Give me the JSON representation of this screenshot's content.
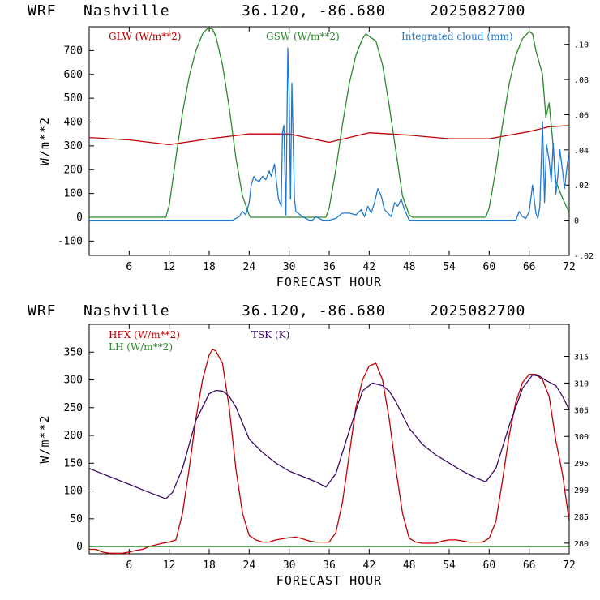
{
  "header": {
    "model": "WRF",
    "location": "Nashville",
    "coords": "36.120, -86.680",
    "date": "2025082700"
  },
  "colors": {
    "glw": "#c00000",
    "gsw": "#2a8a2a",
    "cloud": "#1f78d0",
    "hfx": "#c00000",
    "lh": "#2a8a2a",
    "tsk": "#3c0a64"
  },
  "chart_data": [
    {
      "type": "line",
      "xlabel": "FORECAST HOUR",
      "ylabel": "W/m**2",
      "xlim": [
        0,
        72
      ],
      "ylim": [
        -160,
        800
      ],
      "y2lim": [
        -0.02,
        0.11
      ],
      "x_ticks": [
        6,
        12,
        18,
        24,
        30,
        36,
        42,
        48,
        54,
        60,
        66,
        72
      ],
      "y_ticks": [
        -100,
        0,
        100,
        200,
        300,
        400,
        500,
        600,
        700
      ],
      "y2_ticks": [
        {
          "value": -0.02,
          "label": "-.02"
        },
        {
          "value": 0,
          "label": "0"
        },
        {
          "value": 0.02,
          "label": ".02"
        },
        {
          "value": 0.04,
          "label": ".04"
        },
        {
          "value": 0.06,
          "label": ".06"
        },
        {
          "value": 0.08,
          "label": ".08"
        },
        {
          "value": 0.1,
          "label": ".10"
        }
      ],
      "legend": [
        "GLW (W/m**2)",
        "GSW (W/m**2)",
        "Integrated cloud (mm)"
      ],
      "series": [
        {
          "name": "GLW (W/m**2)",
          "axis": "left",
          "color_key": "glw",
          "x": [
            0,
            6,
            12,
            18,
            24,
            30,
            36,
            42,
            48,
            54,
            60,
            66,
            69,
            72
          ],
          "y": [
            335,
            325,
            305,
            330,
            350,
            350,
            315,
            355,
            345,
            330,
            330,
            360,
            380,
            385
          ]
        },
        {
          "name": "GSW (W/m**2)",
          "axis": "left",
          "color_key": "gsw",
          "x": [
            0,
            11.5,
            12,
            13,
            14,
            15,
            16,
            17,
            17.8,
            18.5,
            19,
            20,
            21,
            22,
            23,
            24,
            24.2,
            35.5,
            36,
            37,
            38,
            39,
            40,
            41,
            41.5,
            42,
            43,
            44,
            45,
            46,
            47,
            48,
            48.5,
            59.5,
            60,
            61,
            62,
            63,
            64,
            65,
            66,
            66.5,
            67,
            67.5,
            68,
            68.5,
            69,
            69.5,
            70,
            71,
            72
          ],
          "y": [
            0,
            0,
            50,
            250,
            440,
            590,
            700,
            770,
            795,
            790,
            760,
            640,
            460,
            250,
            90,
            10,
            0,
            0,
            40,
            200,
            390,
            560,
            680,
            750,
            770,
            760,
            740,
            640,
            470,
            280,
            90,
            10,
            0,
            0,
            40,
            200,
            390,
            560,
            680,
            750,
            780,
            770,
            700,
            650,
            600,
            420,
            480,
            330,
            150,
            80,
            20
          ]
        },
        {
          "name": "Integrated cloud (mm)",
          "axis": "right",
          "color_key": "cloud",
          "x": [
            0,
            17,
            20,
            21.5,
            22.5,
            23,
            23.5,
            24,
            24.3,
            24.7,
            25,
            25.5,
            26,
            26.5,
            27,
            27.3,
            27.8,
            28,
            28.4,
            28.8,
            29,
            29.2,
            29.5,
            29.8,
            30,
            30.2,
            30.4,
            30.6,
            30.8,
            31,
            32,
            33,
            33.5,
            34,
            34.5,
            35,
            36,
            37,
            38,
            39,
            40,
            40.8,
            41.3,
            41.8,
            42.3,
            42.8,
            43.3,
            43.8,
            44.3,
            44.8,
            45.3,
            45.8,
            46.3,
            46.8,
            47.3,
            48,
            49,
            63,
            64,
            64.5,
            65,
            65.5,
            66,
            66.5,
            67,
            67.3,
            67.6,
            68,
            68.3,
            68.6,
            69,
            69.3,
            69.6,
            70,
            70.3,
            70.6,
            71,
            71.3,
            71.6,
            72
          ],
          "y": [
            0.0,
            0.0,
            0.0,
            0.0,
            0.002,
            0.005,
            0.003,
            0.01,
            0.02,
            0.025,
            0.023,
            0.022,
            0.025,
            0.023,
            0.028,
            0.025,
            0.032,
            0.025,
            0.012,
            0.008,
            0.05,
            0.054,
            0.003,
            0.098,
            0.07,
            0.012,
            0.078,
            0.045,
            0.012,
            0.005,
            0.002,
            0.0,
            0.0,
            0.002,
            0.001,
            0.0,
            0.0,
            0.001,
            0.004,
            0.004,
            0.003,
            0.006,
            0.002,
            0.008,
            0.004,
            0.01,
            0.018,
            0.014,
            0.006,
            0.004,
            0.002,
            0.01,
            0.008,
            0.012,
            0.006,
            0.0,
            0.0,
            0.0,
            0.0,
            0.005,
            0.002,
            0.001,
            0.005,
            0.02,
            0.004,
            0.001,
            0.008,
            0.056,
            0.01,
            0.043,
            0.034,
            0.022,
            0.044,
            0.015,
            0.025,
            0.04,
            0.028,
            0.018,
            0.028,
            0.04
          ]
        }
      ]
    },
    {
      "type": "line",
      "xlabel": "FORECAST HOUR",
      "ylabel": "W/m**2",
      "xlim": [
        0,
        72
      ],
      "ylim": [
        -13,
        400
      ],
      "y2lim": [
        278,
        321
      ],
      "x_ticks": [
        6,
        12,
        18,
        24,
        30,
        36,
        42,
        48,
        54,
        60,
        66,
        72
      ],
      "y_ticks": [
        0,
        50,
        100,
        150,
        200,
        250,
        300,
        350
      ],
      "y2_ticks": [
        {
          "value": 280,
          "label": "280"
        },
        {
          "value": 285,
          "label": "285"
        },
        {
          "value": 290,
          "label": "290"
        },
        {
          "value": 295,
          "label": "295"
        },
        {
          "value": 300,
          "label": "300"
        },
        {
          "value": 305,
          "label": "305"
        },
        {
          "value": 310,
          "label": "310"
        },
        {
          "value": 315,
          "label": "315"
        }
      ],
      "legend": [
        "HFX (W/m**2)",
        "LH (W/m**2)",
        "TSK (K)"
      ],
      "series": [
        {
          "name": "HFX (W/m**2)",
          "axis": "left",
          "color_key": "hfx",
          "x": [
            0,
            1,
            2,
            3,
            4,
            5,
            6,
            7,
            8,
            9,
            10,
            11,
            12,
            13,
            14,
            15,
            16,
            17,
            18,
            18.5,
            19,
            20,
            21,
            22,
            23,
            24,
            25,
            26,
            27,
            28,
            29,
            30,
            31,
            32,
            33,
            34,
            35,
            36,
            37,
            38,
            39,
            40,
            41,
            42,
            43,
            44,
            45,
            46,
            47,
            48,
            49,
            50,
            51,
            52,
            53,
            54,
            55,
            56,
            57,
            58,
            59,
            60,
            61,
            62,
            63,
            64,
            65,
            66,
            67,
            68,
            69,
            70,
            71,
            72
          ],
          "y": [
            -5,
            -5,
            -10,
            -12,
            -12,
            -12,
            -10,
            -7,
            -5,
            0,
            3,
            6,
            8,
            12,
            60,
            140,
            230,
            300,
            345,
            355,
            352,
            330,
            250,
            140,
            60,
            20,
            12,
            8,
            8,
            12,
            14,
            16,
            17,
            14,
            10,
            8,
            8,
            8,
            25,
            80,
            165,
            250,
            300,
            325,
            330,
            300,
            230,
            140,
            60,
            15,
            8,
            6,
            6,
            6,
            10,
            12,
            12,
            10,
            8,
            8,
            8,
            15,
            45,
            120,
            200,
            260,
            295,
            310,
            310,
            300,
            270,
            190,
            130,
            45
          ]
        },
        {
          "name": "LH (W/m**2)",
          "axis": "left",
          "color_key": "lh",
          "x": [
            0,
            72
          ],
          "y": [
            0,
            0
          ]
        },
        {
          "name": "TSK (K)",
          "axis": "right",
          "color_key": "tsk",
          "x": [
            0,
            3,
            6,
            9,
            11.5,
            12.5,
            14,
            16,
            18,
            19,
            20,
            21,
            22,
            24,
            26,
            28,
            30,
            32,
            34,
            35.5,
            37,
            39,
            41,
            42.5,
            44,
            45,
            46,
            48,
            50,
            52,
            54,
            56,
            58,
            59.5,
            61,
            63,
            65,
            66.5,
            67.5,
            68.5,
            70,
            71,
            72
          ],
          "y": [
            294,
            292.5,
            291,
            289.5,
            288.3,
            289.5,
            294,
            303,
            308,
            308.6,
            308.5,
            307.5,
            305.5,
            299.5,
            297,
            295,
            293.5,
            292.5,
            291.5,
            290.5,
            293,
            301,
            308.5,
            310,
            309.5,
            308.5,
            306.5,
            301.5,
            298.5,
            296.5,
            295,
            293.5,
            292.2,
            291.5,
            294,
            302,
            309,
            311.5,
            311.3,
            310.5,
            309.5,
            307.5,
            305
          ]
        }
      ]
    }
  ]
}
